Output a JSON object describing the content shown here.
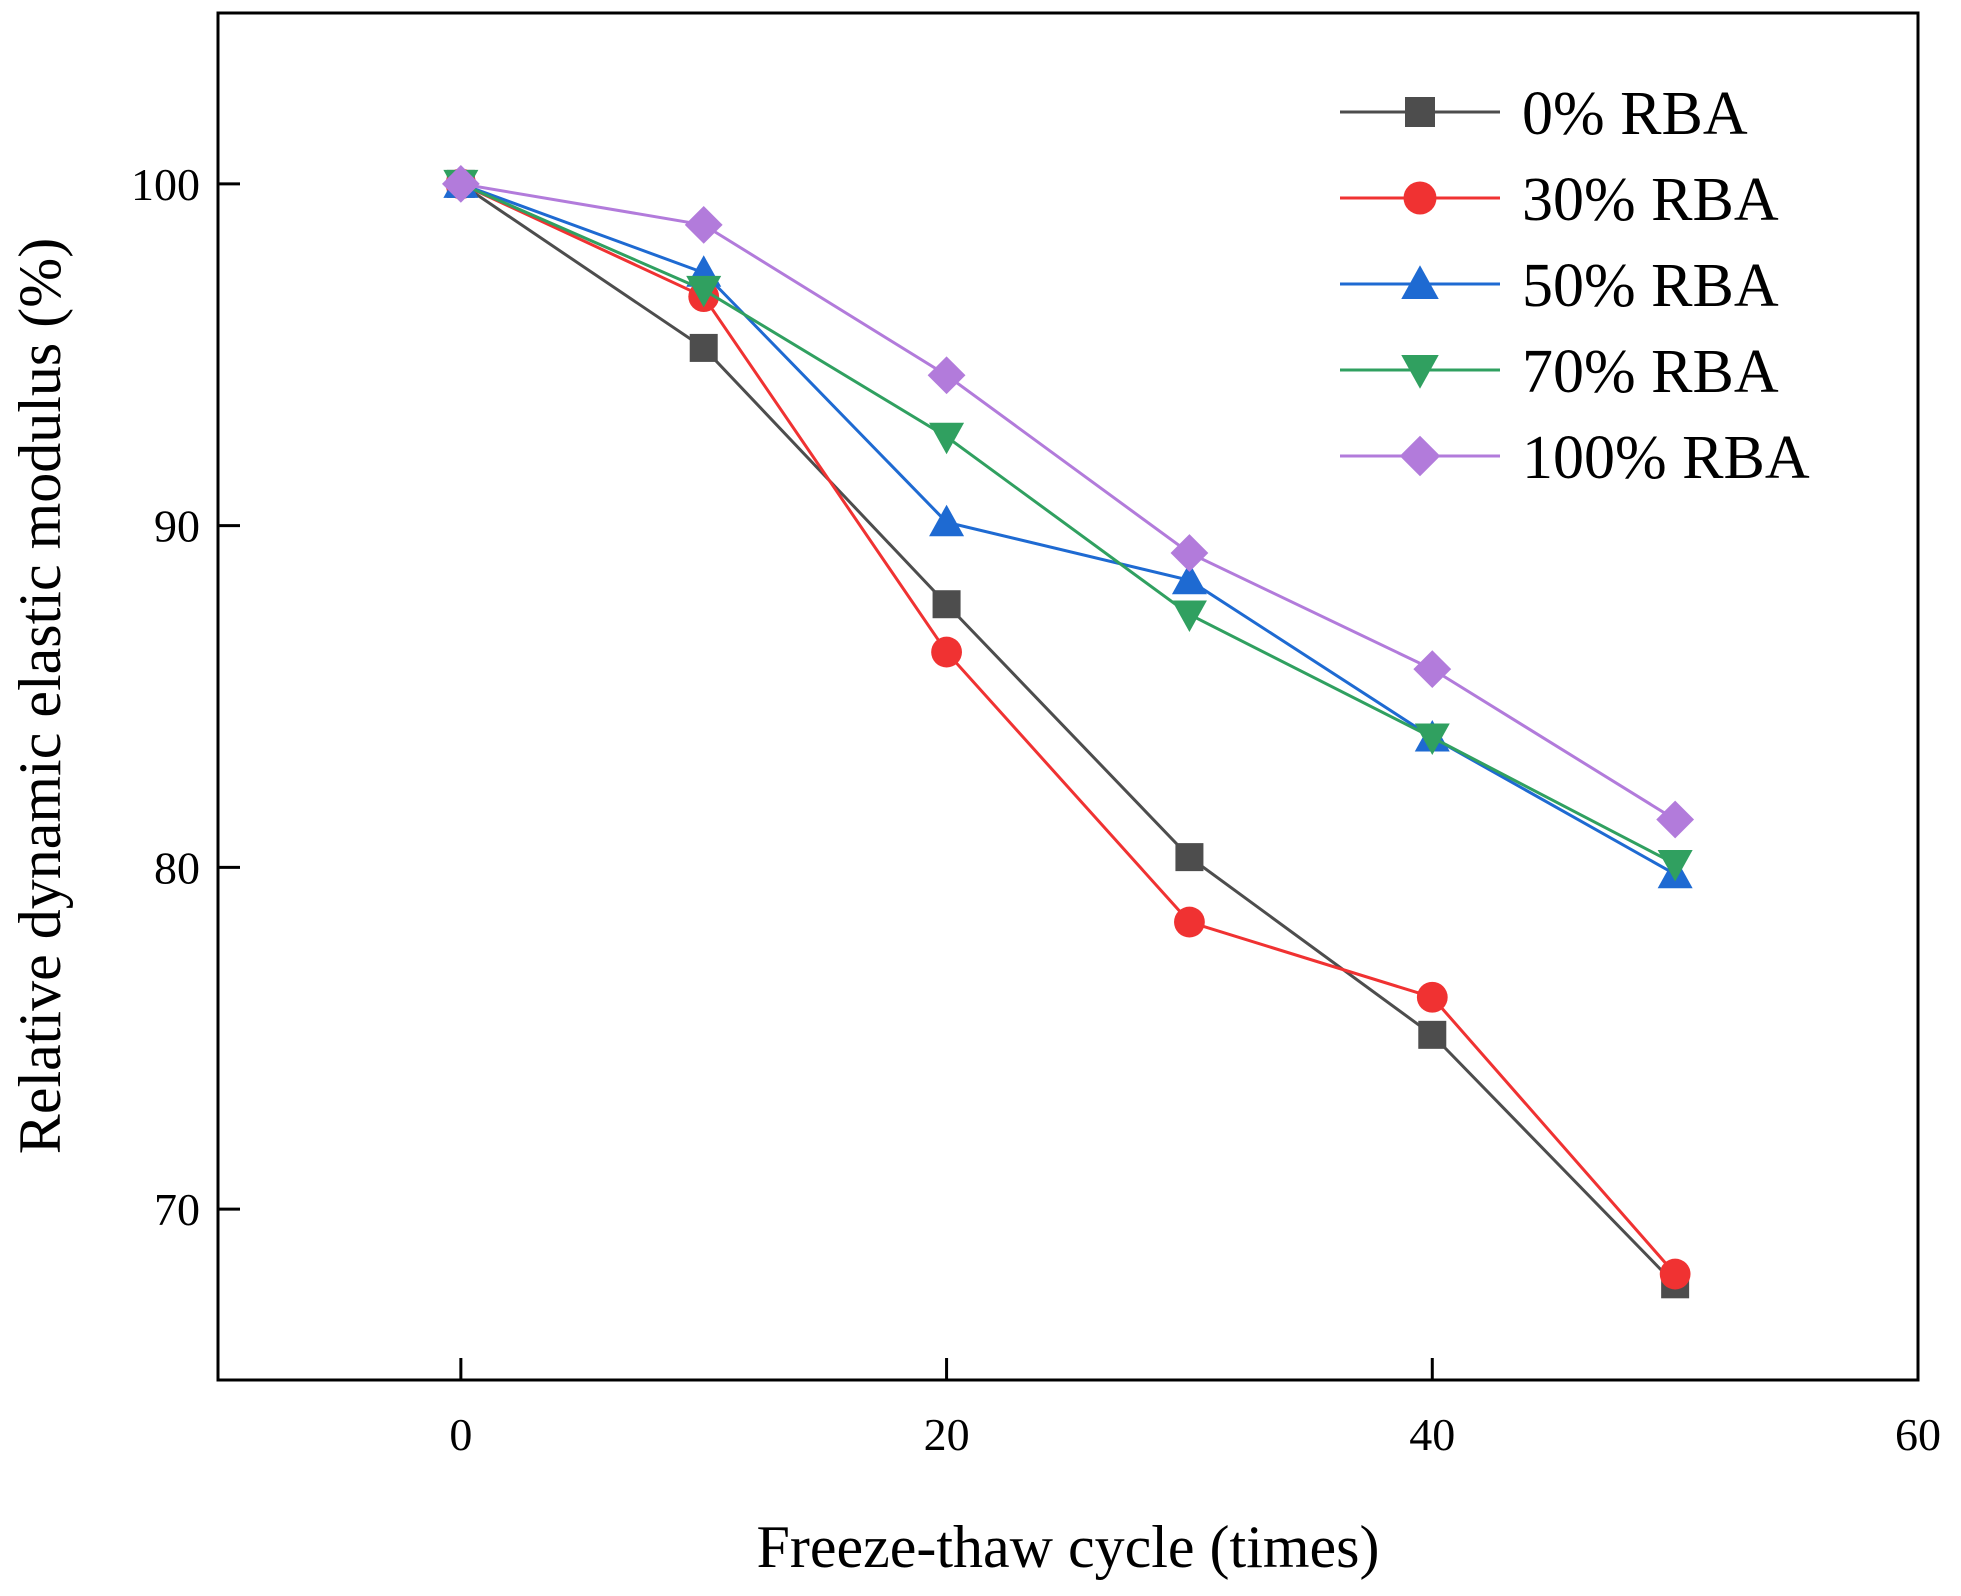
{
  "chart_data": {
    "type": "line",
    "title": "",
    "xlabel": "Freeze-thaw cycle (times)",
    "ylabel": "Relative dynamic elastic modulus (%)",
    "xlim": [
      -10,
      60
    ],
    "ylim": [
      65,
      105
    ],
    "xticks": [
      0,
      20,
      40,
      60
    ],
    "yticks": [
      70,
      80,
      90,
      100
    ],
    "xtick_labels": [
      "0",
      "20",
      "40",
      "60"
    ],
    "ytick_labels": [
      "70",
      "80",
      "90",
      "100"
    ],
    "grid": false,
    "legend_position": "top-right",
    "x": [
      0,
      10,
      20,
      30,
      40,
      50
    ],
    "series": [
      {
        "name": "0% RBA",
        "color": "#4d4d4d",
        "marker": "square",
        "values": [
          100,
          95.2,
          87.7,
          80.3,
          75.1,
          67.8
        ]
      },
      {
        "name": "30% RBA",
        "color": "#f03232",
        "marker": "circle",
        "values": [
          100,
          96.7,
          86.3,
          78.4,
          76.2,
          68.1
        ]
      },
      {
        "name": "50% RBA",
        "color": "#1e6ad2",
        "marker": "triangle-up",
        "values": [
          100,
          97.4,
          90.1,
          88.4,
          83.8,
          79.8
        ]
      },
      {
        "name": "70% RBA",
        "color": "#30a060",
        "marker": "triangle-down",
        "values": [
          100,
          96.9,
          92.6,
          87.4,
          83.8,
          80.1
        ]
      },
      {
        "name": "100% RBA",
        "color": "#b27bdb",
        "marker": "diamond",
        "values": [
          100,
          98.8,
          94.4,
          89.2,
          85.8,
          81.4
        ]
      }
    ]
  }
}
